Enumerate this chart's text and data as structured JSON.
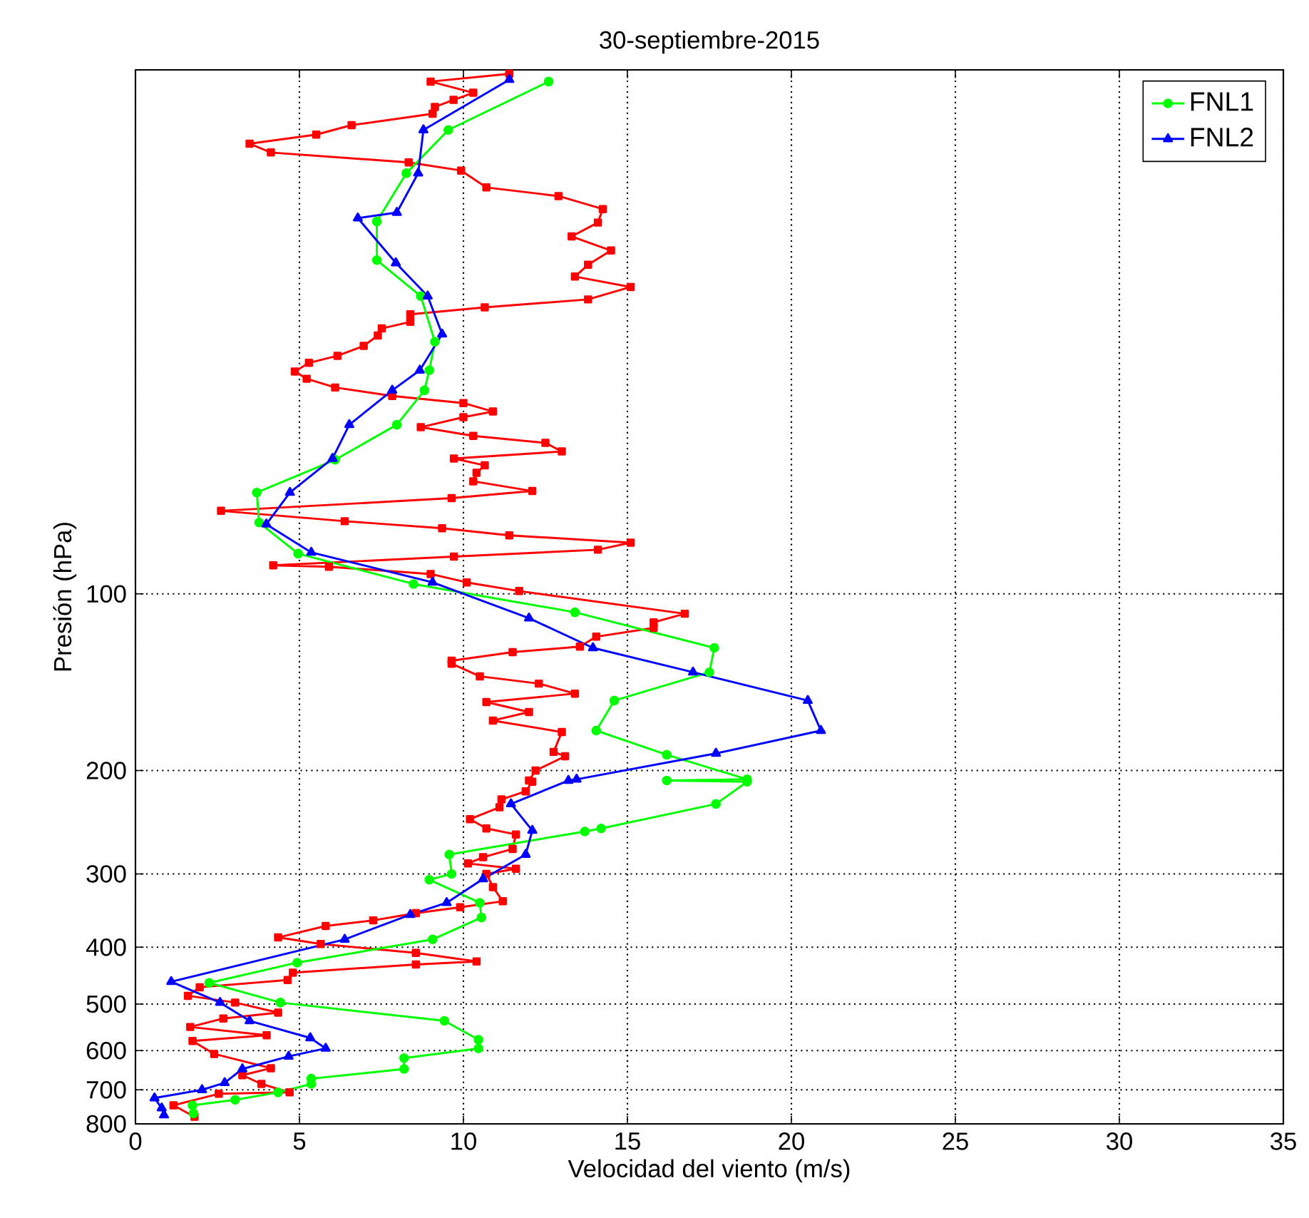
{
  "chart_data": {
    "type": "line",
    "title": "30-septiembre-2015",
    "xlabel": "Velocidad del viento (m/s)",
    "ylabel": "Presión (hPa)",
    "xlim": [
      0,
      35
    ],
    "xticks": [
      0,
      5,
      10,
      15,
      20,
      25,
      30,
      35
    ],
    "ylim": [
      800,
      12.8
    ],
    "yticks": [
      100,
      200,
      300,
      400,
      500,
      600,
      700,
      800
    ],
    "log": "y",
    "grid": true,
    "legend": "top right",
    "series": [
      {
        "color": "#ff0000",
        "marker": "square",
        "x": [
          11.4,
          9.0,
          10.3,
          9.7,
          9.13,
          9.06,
          6.59,
          5.51,
          3.48,
          4.13,
          8.33,
          9.93,
          10.7,
          12.9,
          14.25,
          14.1,
          13.3,
          14.5,
          13.8,
          13.4,
          15.1,
          13.8,
          10.65,
          8.38,
          8.38,
          7.51,
          7.39,
          6.96,
          6.16,
          5.29,
          4.86,
          5.22,
          6.09,
          7.83,
          10.0,
          10.9,
          10.0,
          8.7,
          10.3,
          12.5,
          13.0,
          9.71,
          10.65,
          10.4,
          10.3,
          12.1,
          9.64,
          2.61,
          6.38,
          9.35,
          11.4,
          15.1,
          14.1,
          9.71,
          4.2,
          5.9,
          9.0,
          10.1,
          11.7,
          16.75,
          15.8,
          15.8,
          14.05,
          13.55,
          11.5,
          9.64,
          9.64,
          10.5,
          12.3,
          13.4,
          10.7,
          12.0,
          10.9,
          13.0,
          12.75,
          13.1,
          12.2,
          12.0,
          12.1,
          11.9,
          11.16,
          11.1,
          10.2,
          10.7,
          11.6,
          11.5,
          10.6,
          10.14,
          11.6,
          10.7,
          10.9,
          11.2,
          9.9,
          8.55,
          7.25,
          5.8,
          4.35,
          5.65,
          8.55,
          10.4,
          8.55,
          4.8,
          4.64,
          1.96,
          1.6,
          3.04,
          4.35,
          2.68,
          1.67,
          4.0,
          1.74,
          2.4,
          4.13,
          3.26,
          3.84,
          4.7,
          2.54,
          1.16,
          1.8
        ],
        "values": [
          13.0,
          13.4,
          14.0,
          14.4,
          14.8,
          15.2,
          15.9,
          16.5,
          17.1,
          17.7,
          18.4,
          19.0,
          20.3,
          21.0,
          22.1,
          23.3,
          24.6,
          26.0,
          27.5,
          28.8,
          30.0,
          31.5,
          32.5,
          33.4,
          34.4,
          35.3,
          36.3,
          37.8,
          39.3,
          40.4,
          41.8,
          43.0,
          44.5,
          46.0,
          47.3,
          48.9,
          50.0,
          52.0,
          53.8,
          55.3,
          57.2,
          58.8,
          60.4,
          62.2,
          64.3,
          66.8,
          68.7,
          72.2,
          75.2,
          77.3,
          79.5,
          81.8,
          84.1,
          86.4,
          89.4,
          89.9,
          92.5,
          95.6,
          98.9,
          108.1,
          111.8,
          114.3,
          118.3,
          123.0,
          125.7,
          130.0,
          131.5,
          138.2,
          142.2,
          147.9,
          152.9,
          159.0,
          164.4,
          172.0,
          185.9,
          189.1,
          200,
          208,
          209,
          217,
          224,
          231,
          242,
          251,
          257,
          272,
          281,
          288,
          294,
          300,
          316,
          334,
          342,
          350,
          360,
          368,
          385,
          395,
          409,
          423,
          428,
          442,
          455,
          468,
          484,
          497,
          517,
          529,
          547,
          565,
          578,
          608,
          643,
          661,
          684,
          707,
          711,
          744,
          778
        ]
      },
      {
        "name": "FNL1",
        "color": "#00ff00",
        "marker": "circle",
        "x": [
          12.6,
          9.54,
          8.26,
          7.36,
          7.36,
          8.7,
          9.13,
          8.96,
          8.81,
          7.97,
          6.09,
          3.7,
          3.77,
          4.96,
          8.48,
          13.4,
          17.65,
          17.5,
          14.6,
          14.05,
          16.2,
          18.65,
          16.2,
          18.65,
          17.7,
          14.2,
          13.7,
          9.57,
          9.64,
          8.96,
          10.5,
          10.55,
          9.06,
          4.93,
          2.25,
          4.42,
          9.42,
          10.46,
          10.46,
          8.19,
          8.19,
          5.36,
          5.36,
          4.35,
          3.04,
          1.74,
          1.77
        ],
        "values": [
          13.4,
          16.2,
          19.2,
          23.2,
          27.0,
          31.1,
          37.2,
          41.6,
          45.0,
          51.5,
          59.1,
          67.2,
          75.6,
          85.4,
          96.2,
          107.5,
          123.6,
          136,
          152,
          171,
          188,
          207,
          208,
          209,
          228,
          251,
          254,
          278,
          300,
          307,
          336,
          356,
          388,
          425,
          460,
          497,
          534,
          575,
          595,
          618,
          645,
          670,
          684,
          707,
          728,
          744,
          768
        ]
      },
      {
        "name": "FNL2",
        "color": "#0000ff",
        "marker": "triangle",
        "x": [
          11.4,
          8.78,
          8.62,
          7.97,
          6.78,
          7.94,
          8.91,
          9.35,
          8.67,
          7.83,
          6.52,
          6.01,
          4.71,
          3.99,
          5.36,
          9.06,
          12.0,
          13.95,
          17.0,
          20.5,
          20.9,
          17.7,
          13.45,
          13.2,
          11.45,
          12.1,
          11.9,
          10.6,
          9.49,
          8.38,
          6.38,
          1.09,
          2.58,
          3.48,
          5.33,
          5.8,
          4.67,
          3.26,
          2.72,
          2.03,
          0.58,
          0.8,
          0.87
        ],
        "values": [
          13.3,
          16.2,
          19.2,
          22.4,
          22.9,
          27.3,
          31.1,
          36.1,
          41.6,
          45.0,
          51.5,
          58.8,
          67.2,
          76.1,
          85.0,
          95.6,
          110,
          123.6,
          136,
          152,
          171,
          187,
          207,
          208,
          228,
          253,
          278,
          306,
          336,
          352,
          388,
          458,
          497,
          534,
          571,
          595,
          614,
          645,
          681,
          700,
          723,
          752,
          773
        ]
      }
    ]
  }
}
